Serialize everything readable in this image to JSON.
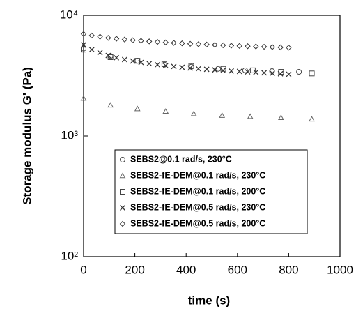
{
  "chart_data": {
    "type": "scatter",
    "x_label": "time (s)",
    "y_label": "Storage modulus G' (Pa)",
    "xlim": [
      0,
      1000
    ],
    "xticks": [
      0,
      200,
      400,
      600,
      800,
      1000
    ],
    "ylim": [
      100,
      10000
    ],
    "yticks": [
      {
        "value": 100,
        "label": "10²"
      },
      {
        "value": 1000,
        "label": "10³"
      },
      {
        "value": 10000,
        "label": "10⁴"
      }
    ],
    "y_scale": "log",
    "grid": false,
    "legend_position": "lower right",
    "series": [
      {
        "name": "SEBS2@0.1 rad/s, 230°C",
        "marker": "circle",
        "color": "#444444",
        "x": [
          0,
          105,
          210,
          315,
          420,
          525,
          630,
          735,
          840
        ],
        "values": [
          5300,
          4600,
          4200,
          3900,
          3750,
          3600,
          3500,
          3450,
          3400
        ]
      },
      {
        "name": "SEBS2-fE-DEM@0.1 rad/s, 230°C",
        "marker": "triangle",
        "color": "#666666",
        "x": [
          0,
          105,
          210,
          320,
          430,
          540,
          650,
          770,
          890
        ],
        "values": [
          2050,
          1800,
          1680,
          1600,
          1530,
          1480,
          1450,
          1420,
          1380
        ]
      },
      {
        "name": "SEBS2-fE-DEM@0.1 rad/s, 200°C",
        "marker": "square",
        "color": "#444444",
        "x": [
          0,
          105,
          210,
          315,
          420,
          545,
          660,
          770,
          890
        ],
        "values": [
          5200,
          4500,
          4200,
          3950,
          3800,
          3600,
          3500,
          3400,
          3300
        ]
      },
      {
        "name": "SEBS2-fE-DEM@0.5 rad/s, 230°C",
        "marker": "cross",
        "color": "#333333",
        "x": [
          0,
          32,
          64,
          96,
          128,
          160,
          192,
          224,
          256,
          288,
          320,
          352,
          384,
          416,
          448,
          480,
          512,
          544,
          576,
          608,
          640,
          672,
          704,
          736,
          768,
          800
        ],
        "values": [
          5700,
          5200,
          4900,
          4650,
          4450,
          4300,
          4180,
          4070,
          3980,
          3900,
          3830,
          3770,
          3710,
          3660,
          3610,
          3570,
          3530,
          3490,
          3460,
          3430,
          3400,
          3370,
          3340,
          3310,
          3280,
          3250
        ]
      },
      {
        "name": "SEBS2-fE-DEM@0.5 rad/s, 200°C",
        "marker": "diamond",
        "color": "#333333",
        "x": [
          0,
          32,
          64,
          96,
          128,
          160,
          192,
          224,
          256,
          288,
          320,
          352,
          384,
          416,
          448,
          480,
          512,
          544,
          576,
          608,
          640,
          672,
          704,
          736,
          768,
          800
        ],
        "values": [
          7000,
          6800,
          6650,
          6500,
          6400,
          6300,
          6220,
          6150,
          6080,
          6020,
          5960,
          5910,
          5860,
          5810,
          5770,
          5730,
          5690,
          5650,
          5610,
          5580,
          5550,
          5520,
          5490,
          5460,
          5430,
          5400
        ]
      }
    ]
  }
}
